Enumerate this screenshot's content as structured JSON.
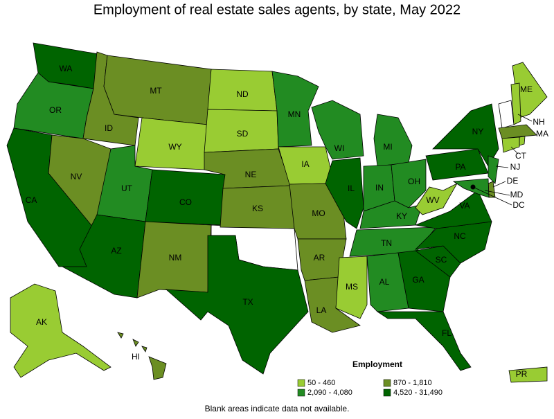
{
  "title": "Employment of real estate sales agents, by state, May 2022",
  "legend": {
    "title": "Employment",
    "items": [
      {
        "label": "50 - 460",
        "color": "#99cc33"
      },
      {
        "label": "870 - 1,810",
        "color": "#6b8e23"
      },
      {
        "label": "2,090 - 4,080",
        "color": "#228b22"
      },
      {
        "label": "4,520 - 31,490",
        "color": "#006400"
      }
    ]
  },
  "states": [
    {
      "label": "WA",
      "category": 3
    },
    {
      "label": "OR",
      "category": 2
    },
    {
      "label": "CA",
      "category": 3
    },
    {
      "label": "NV",
      "category": 1
    },
    {
      "label": "ID",
      "category": 1
    },
    {
      "label": "MT",
      "category": 1
    },
    {
      "label": "WY",
      "category": 0
    },
    {
      "label": "UT",
      "category": 2
    },
    {
      "label": "AZ",
      "category": 3
    },
    {
      "label": "CO",
      "category": 3
    },
    {
      "label": "NM",
      "category": 1
    },
    {
      "label": "ND",
      "category": 0
    },
    {
      "label": "SD",
      "category": 0
    },
    {
      "label": "NE",
      "category": 1
    },
    {
      "label": "KS",
      "category": 1
    },
    {
      "label": "TX",
      "category": 3
    },
    {
      "label": "MN",
      "category": 2
    },
    {
      "label": "IA",
      "category": 0
    },
    {
      "label": "MO",
      "category": 1
    },
    {
      "label": "AR",
      "category": 1
    },
    {
      "label": "LA",
      "category": 1
    },
    {
      "label": "WI",
      "category": 2
    },
    {
      "label": "IL",
      "category": 3
    },
    {
      "label": "MI",
      "category": 2
    },
    {
      "label": "IN",
      "category": 2
    },
    {
      "label": "OH",
      "category": 2
    },
    {
      "label": "KY",
      "category": 2
    },
    {
      "label": "TN",
      "category": 2
    },
    {
      "label": "MS",
      "category": 0
    },
    {
      "label": "AL",
      "category": 2
    },
    {
      "label": "GA",
      "category": 3
    },
    {
      "label": "FL",
      "category": 3
    },
    {
      "label": "SC",
      "category": 3
    },
    {
      "label": "NC",
      "category": 3
    },
    {
      "label": "VA",
      "category": 3
    },
    {
      "label": "WV",
      "category": 0
    },
    {
      "label": "PA",
      "category": 3
    },
    {
      "label": "NY",
      "category": 3
    },
    {
      "label": "ME",
      "category": 0
    },
    {
      "label": "NH",
      "category": 0
    },
    {
      "label": "MA",
      "category": 1
    },
    {
      "label": "CT",
      "category": 0
    },
    {
      "label": "NJ",
      "category": 2
    },
    {
      "label": "DE",
      "category": 1
    },
    {
      "label": "MD",
      "category": 2
    },
    {
      "label": "DC",
      "category": 3
    },
    {
      "label": "AK",
      "category": 0
    },
    {
      "label": "HI",
      "category": 1
    },
    {
      "label": "PR",
      "category": 0
    }
  ],
  "note": "Blank areas indicate data not available."
}
